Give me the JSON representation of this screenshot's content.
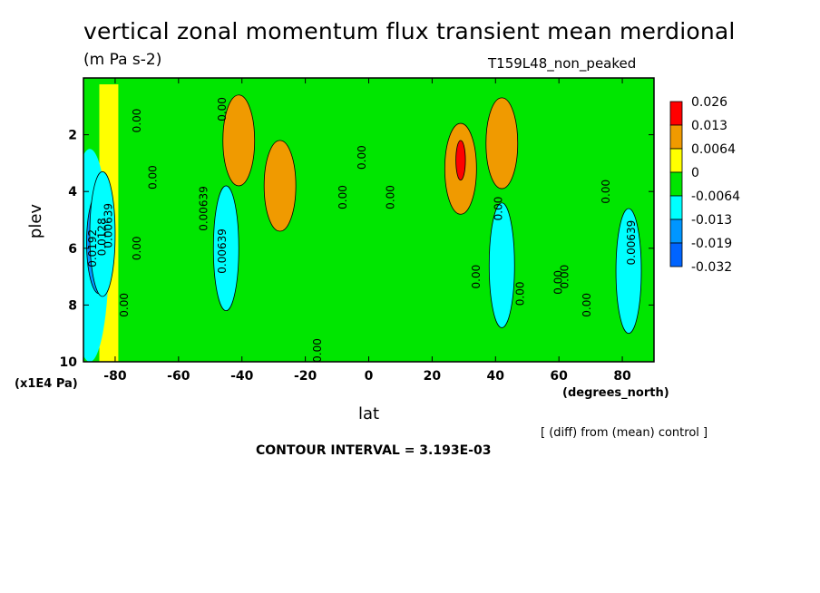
{
  "title": "vertical zonal momentum flux transient mean merdional",
  "units": "(m Pa s-2)",
  "run_label": "T159L48_non_peaked",
  "y_axis_unit": "(x1E4 Pa)",
  "x_axis_unit": "(degrees_north)",
  "diff_note": "[ (diff) from (mean) control ]",
  "contour_interval": "CONTOUR INTERVAL = 3.193E-03",
  "chart_data": {
    "type": "heatmap",
    "title": "vertical zonal momentum flux transient mean merdional",
    "xlabel": "lat",
    "ylabel": "plev",
    "xlim": [
      -90,
      90
    ],
    "ylim": [
      0,
      10
    ],
    "y_inverted": true,
    "x_ticks": [
      -80,
      -60,
      -40,
      -20,
      0,
      20,
      40,
      60,
      80
    ],
    "x_tick_labels": [
      "-80",
      "-60",
      "-40",
      "-20",
      "0",
      "20",
      "40",
      "60",
      "80"
    ],
    "y_ticks": [
      2,
      4,
      6,
      8,
      10
    ],
    "y_tick_labels": [
      "2",
      "4",
      "6",
      "8",
      "10"
    ],
    "legend": {
      "placement": "right",
      "labels": [
        "0.026",
        "0.013",
        "0.0064",
        "0",
        "-0.0064",
        "-0.013",
        "-0.019",
        "-0.032"
      ],
      "colors": [
        "#ff0000",
        "#f09a00",
        "#ffff00",
        "#00e600",
        "#00ffff",
        "#0096ff",
        "#0064ff"
      ]
    },
    "contour_labels": [
      {
        "text": "0.00",
        "lat": -72,
        "plev": 1.5
      },
      {
        "text": "0.00",
        "lat": -45,
        "plev": 1.1
      },
      {
        "text": "0.00",
        "lat": -67,
        "plev": 3.5
      },
      {
        "text": "0.00639",
        "lat": -81,
        "plev": 5.2
      },
      {
        "text": "0.0128",
        "lat": -83,
        "plev": 5.6
      },
      {
        "text": "0.0192",
        "lat": -86,
        "plev": 6.0
      },
      {
        "text": "0.00",
        "lat": -72,
        "plev": 6.0
      },
      {
        "text": "0.00",
        "lat": -76,
        "plev": 8.0
      },
      {
        "text": "0.00639",
        "lat": -51,
        "plev": 4.6
      },
      {
        "text": "0.00639",
        "lat": -45,
        "plev": 6.1
      },
      {
        "text": "0.00",
        "lat": -15,
        "plev": 9.6
      },
      {
        "text": "0.00",
        "lat": -7,
        "plev": 4.2
      },
      {
        "text": "0.00",
        "lat": -1,
        "plev": 2.8
      },
      {
        "text": "0.00",
        "lat": 8,
        "plev": 4.2
      },
      {
        "text": "0.00",
        "lat": 35,
        "plev": 7.0
      },
      {
        "text": "0.00",
        "lat": 42,
        "plev": 4.6
      },
      {
        "text": "0.00",
        "lat": 49,
        "plev": 7.6
      },
      {
        "text": "0.00",
        "lat": 61,
        "plev": 7.2
      },
      {
        "text": "0.00",
        "lat": 63,
        "plev": 7.0
      },
      {
        "text": "0.00",
        "lat": 70,
        "plev": 8.0
      },
      {
        "text": "0.00",
        "lat": 76,
        "plev": 4.0
      },
      {
        "text": "0.00639",
        "lat": 84,
        "plev": 5.8
      }
    ],
    "regions": [
      {
        "level": 1,
        "lat": -85,
        "plev": 5.8
      },
      {
        "level": 2,
        "lat": -84,
        "plev": 5.5
      },
      {
        "level": 2,
        "lat": -45,
        "plev": 6.0
      },
      {
        "level": 2,
        "lat": 42,
        "plev": 6.6
      },
      {
        "level": 2,
        "lat": 82,
        "plev": 6.8
      },
      {
        "level": 5,
        "lat": -28,
        "plev": 3.8
      },
      {
        "level": 5,
        "lat": -41,
        "plev": 2.2
      },
      {
        "level": 5,
        "lat": 29,
        "plev": 3.2
      },
      {
        "level": 5,
        "lat": 42,
        "plev": 2.3
      },
      {
        "level": 6,
        "lat": 29,
        "plev": 2.9
      }
    ]
  }
}
